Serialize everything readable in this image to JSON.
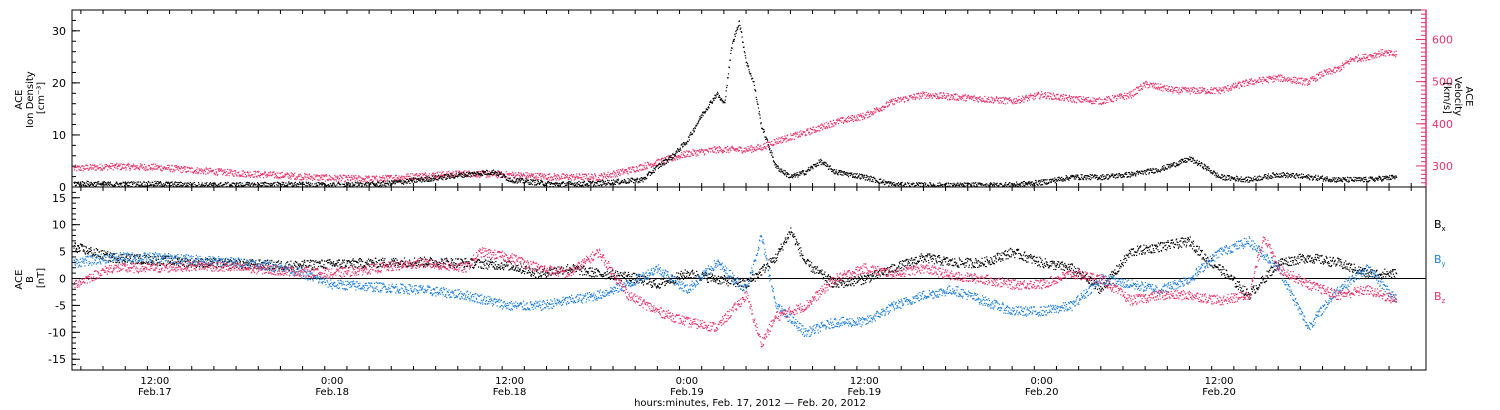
{
  "chart_data": [
    {
      "type": "scatter",
      "x_unit": "hours since 2012-02-17 00:00 UT",
      "xlim": [
        6.4,
        98
      ],
      "left_axis": {
        "title_lines": [
          "ACE",
          "Ion Density",
          "[cm⁻³]"
        ],
        "ylim": [
          0,
          34
        ],
        "ticks": [
          0,
          10,
          20,
          30
        ]
      },
      "right_axis": {
        "title_lines": [
          "ACE",
          "Velocity",
          "[km/s]"
        ],
        "ylim": [
          250,
          670
        ],
        "ticks": [
          300,
          400,
          500,
          600
        ],
        "color": "#e8336a"
      },
      "series": [
        {
          "color": "#000000",
          "axis": "left",
          "points": [
            [
              6.5,
              0.8
            ],
            [
              9,
              0.6
            ],
            [
              12,
              0.7
            ],
            [
              15,
              0.5
            ],
            [
              18,
              0.5
            ],
            [
              21,
              0.6
            ],
            [
              24,
              0.4
            ],
            [
              27,
              0.6
            ],
            [
              30,
              1.5
            ],
            [
              33,
              2.5
            ],
            [
              35,
              3.0
            ],
            [
              36,
              1.5
            ],
            [
              39,
              0.6
            ],
            [
              42,
              0.8
            ],
            [
              45,
              1.5
            ],
            [
              46,
              4
            ],
            [
              47,
              6
            ],
            [
              48,
              9
            ],
            [
              49,
              14
            ],
            [
              50,
              18
            ],
            [
              50.5,
              16
            ],
            [
              51,
              27
            ],
            [
              51.5,
              32
            ],
            [
              52,
              24
            ],
            [
              52.5,
              20
            ],
            [
              53,
              12
            ],
            [
              53.5,
              8
            ],
            [
              54,
              4
            ],
            [
              55,
              2
            ],
            [
              56,
              3
            ],
            [
              57,
              5
            ],
            [
              58,
              3
            ],
            [
              60,
              2
            ],
            [
              62,
              0.5
            ],
            [
              66,
              0.4
            ],
            [
              70,
              0.5
            ],
            [
              72,
              1
            ],
            [
              74,
              2
            ],
            [
              76,
              2
            ],
            [
              78,
              2.5
            ],
            [
              80,
              3.5
            ],
            [
              81,
              4.5
            ],
            [
              82,
              5.5
            ],
            [
              83,
              4
            ],
            [
              84,
              2
            ],
            [
              86,
              1.5
            ],
            [
              88,
              2.5
            ],
            [
              90,
              2
            ],
            [
              92,
              1.5
            ],
            [
              94,
              1.5
            ],
            [
              96,
              2
            ]
          ]
        },
        {
          "color": "#e8336a",
          "axis": "right",
          "points": [
            [
              6.5,
              295
            ],
            [
              9,
              300
            ],
            [
              12,
              298
            ],
            [
              15,
              290
            ],
            [
              18,
              283
            ],
            [
              21,
              278
            ],
            [
              24,
              272
            ],
            [
              27,
              270
            ],
            [
              30,
              278
            ],
            [
              33,
              283
            ],
            [
              36,
              280
            ],
            [
              39,
              275
            ],
            [
              42,
              275
            ],
            [
              44,
              290
            ],
            [
              46,
              310
            ],
            [
              48,
              330
            ],
            [
              50,
              340
            ],
            [
              52,
              340
            ],
            [
              53,
              345
            ],
            [
              54,
              360
            ],
            [
              56,
              380
            ],
            [
              58,
              405
            ],
            [
              60,
              420
            ],
            [
              62,
              455
            ],
            [
              64,
              470
            ],
            [
              66,
              465
            ],
            [
              68,
              460
            ],
            [
              70,
              455
            ],
            [
              72,
              470
            ],
            [
              74,
              460
            ],
            [
              76,
              455
            ],
            [
              78,
              470
            ],
            [
              79,
              495
            ],
            [
              81,
              480
            ],
            [
              84,
              480
            ],
            [
              86,
              500
            ],
            [
              88,
              510
            ],
            [
              90,
              500
            ],
            [
              91,
              520
            ],
            [
              92,
              530
            ],
            [
              93,
              555
            ],
            [
              94,
              560
            ],
            [
              95,
              570
            ],
            [
              96,
              565
            ]
          ]
        }
      ]
    },
    {
      "type": "scatter",
      "x_unit": "hours since 2012-02-17 00:00 UT",
      "xlim": [
        6.4,
        98
      ],
      "y_axis": {
        "title_lines": [
          "ACE",
          "B",
          "[nT]"
        ],
        "ylim": [
          -17,
          17
        ],
        "ticks": [
          -15,
          -10,
          -5,
          0,
          5,
          10,
          15
        ],
        "zero_line": true
      },
      "legend": {
        "placement": "right",
        "entries": [
          {
            "label": "B",
            "subscript": "x",
            "color": "#000000"
          },
          {
            "label": "B",
            "subscript": "y",
            "color": "#1f7fd8"
          },
          {
            "label": "B",
            "subscript": "z",
            "color": "#e8336a"
          }
        ]
      },
      "series": [
        {
          "name": "Bx",
          "color": "#000000",
          "points": [
            [
              6.5,
              6
            ],
            [
              9,
              4
            ],
            [
              12,
              3.5
            ],
            [
              15,
              3
            ],
            [
              18,
              2.8
            ],
            [
              21,
              2.5
            ],
            [
              24,
              2.8
            ],
            [
              27,
              3
            ],
            [
              30,
              3.2
            ],
            [
              33,
              3
            ],
            [
              36,
              2.5
            ],
            [
              38,
              1
            ],
            [
              40,
              2
            ],
            [
              42,
              1
            ],
            [
              44,
              0.5
            ],
            [
              46,
              -1
            ],
            [
              48,
              1
            ],
            [
              50,
              0
            ],
            [
              52,
              -1
            ],
            [
              54,
              4
            ],
            [
              55,
              9
            ],
            [
              56,
              3
            ],
            [
              58,
              -1
            ],
            [
              60,
              0
            ],
            [
              62,
              2
            ],
            [
              64,
              4
            ],
            [
              66,
              3
            ],
            [
              68,
              3
            ],
            [
              70,
              5
            ],
            [
              72,
              3
            ],
            [
              74,
              2
            ],
            [
              76,
              -2
            ],
            [
              78,
              5
            ],
            [
              80,
              6
            ],
            [
              82,
              7
            ],
            [
              83,
              4
            ],
            [
              84,
              2
            ],
            [
              86,
              -3
            ],
            [
              88,
              3
            ],
            [
              90,
              4
            ],
            [
              92,
              3
            ],
            [
              94,
              1
            ],
            [
              96,
              1
            ]
          ]
        },
        {
          "name": "By",
          "color": "#1f7fd8",
          "points": [
            [
              6.5,
              3
            ],
            [
              9,
              4
            ],
            [
              12,
              4
            ],
            [
              15,
              3.5
            ],
            [
              18,
              3
            ],
            [
              21,
              2
            ],
            [
              24,
              -1
            ],
            [
              27,
              -1.5
            ],
            [
              30,
              -2
            ],
            [
              33,
              -3
            ],
            [
              36,
              -5
            ],
            [
              38,
              -5
            ],
            [
              40,
              -4
            ],
            [
              42,
              -3
            ],
            [
              44,
              -1
            ],
            [
              46,
              2
            ],
            [
              48,
              -2
            ],
            [
              50,
              3
            ],
            [
              52,
              -2
            ],
            [
              53,
              8
            ],
            [
              54,
              -5
            ],
            [
              56,
              -10
            ],
            [
              58,
              -8
            ],
            [
              60,
              -8
            ],
            [
              62,
              -5
            ],
            [
              64,
              -3
            ],
            [
              66,
              -2
            ],
            [
              68,
              -4
            ],
            [
              70,
              -6
            ],
            [
              72,
              -6
            ],
            [
              74,
              -5
            ],
            [
              76,
              0
            ],
            [
              78,
              -1
            ],
            [
              80,
              -2
            ],
            [
              82,
              0
            ],
            [
              84,
              5
            ],
            [
              86,
              7
            ],
            [
              88,
              2
            ],
            [
              90,
              -9
            ],
            [
              92,
              -2
            ],
            [
              94,
              2
            ],
            [
              96,
              -4
            ]
          ]
        },
        {
          "name": "Bz",
          "color": "#e8336a",
          "points": [
            [
              6.5,
              -1
            ],
            [
              9,
              2
            ],
            [
              12,
              2
            ],
            [
              15,
              2.5
            ],
            [
              18,
              2
            ],
            [
              21,
              1.5
            ],
            [
              24,
              1
            ],
            [
              27,
              2
            ],
            [
              30,
              3
            ],
            [
              33,
              2
            ],
            [
              34,
              5
            ],
            [
              36,
              4
            ],
            [
              38,
              2
            ],
            [
              40,
              1
            ],
            [
              42,
              5
            ],
            [
              44,
              -3
            ],
            [
              46,
              -6
            ],
            [
              48,
              -8
            ],
            [
              50,
              -9
            ],
            [
              52,
              -3
            ],
            [
              53,
              -12
            ],
            [
              54,
              -7
            ],
            [
              56,
              -5
            ],
            [
              58,
              0
            ],
            [
              60,
              2
            ],
            [
              62,
              1
            ],
            [
              64,
              2
            ],
            [
              66,
              0.5
            ],
            [
              68,
              0
            ],
            [
              70,
              -1
            ],
            [
              72,
              -1
            ],
            [
              74,
              1
            ],
            [
              76,
              0
            ],
            [
              78,
              -4
            ],
            [
              80,
              -3
            ],
            [
              82,
              -3
            ],
            [
              84,
              -4
            ],
            [
              86,
              -3
            ],
            [
              87,
              8
            ],
            [
              88,
              2
            ],
            [
              90,
              -1
            ],
            [
              92,
              -3
            ],
            [
              94,
              -2
            ],
            [
              96,
              -4
            ]
          ]
        }
      ]
    }
  ],
  "x_axis": {
    "ticks": [
      {
        "hours": 12,
        "time": "12:00",
        "date": "Feb.17"
      },
      {
        "hours": 24,
        "time": "0:00",
        "date": "Feb.18"
      },
      {
        "hours": 36,
        "time": "12:00",
        "date": "Feb.18"
      },
      {
        "hours": 48,
        "time": "0:00",
        "date": "Feb.19"
      },
      {
        "hours": 60,
        "time": "12:00",
        "date": "Feb.19"
      },
      {
        "hours": 72,
        "time": "0:00",
        "date": "Feb.20"
      },
      {
        "hours": 84,
        "time": "12:00",
        "date": "Feb.20"
      }
    ],
    "title": "hours:minutes, Feb. 17, 2012 — Feb. 20, 2012"
  }
}
